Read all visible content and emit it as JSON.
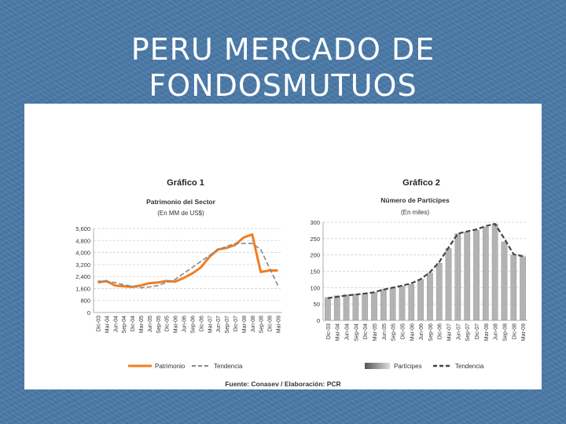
{
  "slide": {
    "title_line1": "PERU MERCADO DE",
    "title_line2": "FONDOSMUTUOS",
    "source": "Fuente: Conasev / Elaboración: PCR"
  },
  "colors": {
    "background": "#4a7aa8",
    "patrimonio": "#f07d22",
    "tendencia": "#888888",
    "bars": "#b5b5b5"
  },
  "chart_data": [
    {
      "type": "line",
      "title": "Gráfico 1",
      "subtitle": "Patrimonio del Sector",
      "unit_note": "(En MM de US$)",
      "x": [
        "Dic-03",
        "Mar-04",
        "Jun-04",
        "Sep-04",
        "Dic-04",
        "Mar-05",
        "Jun-05",
        "Sep-05",
        "Dic-05",
        "Mar-06",
        "Jun-06",
        "Sep-06",
        "Dic-06",
        "Mar-07",
        "Jun-07",
        "Sep-07",
        "Dic-07",
        "Mar-08",
        "Jun-08",
        "Sep-08",
        "Dic-08",
        "Mar-09"
      ],
      "y_ticks": [
        "5,600",
        "4,800",
        "4,000",
        "3,200",
        "2,400",
        "1,600",
        "800",
        "0"
      ],
      "ylim": [
        0,
        5600
      ],
      "grid": true,
      "legend_position": "bottom",
      "series": [
        {
          "name": "Patrimonio",
          "style": "solid",
          "values": [
            2000,
            2100,
            1800,
            1750,
            1700,
            1800,
            1950,
            2000,
            2100,
            2050,
            2300,
            2600,
            3000,
            3700,
            4200,
            4300,
            4500,
            5000,
            5200,
            2700,
            2800,
            2800
          ]
        },
        {
          "name": "Tendencia",
          "style": "dashed",
          "values": [
            2100,
            2050,
            2000,
            1850,
            1750,
            1650,
            1700,
            1800,
            2000,
            2200,
            2600,
            3000,
            3400,
            3800,
            4200,
            4400,
            4600,
            4600,
            4600,
            4200,
            3000,
            1800
          ]
        }
      ]
    },
    {
      "type": "bar",
      "title": "Gráfico 2",
      "subtitle": "Número de Partícipes",
      "unit_note": "(En miles)",
      "x": [
        "Dic-03",
        "Mar-04",
        "Jun-04",
        "Sep-04",
        "Dic-04",
        "Mar-05",
        "Jun-05",
        "Sep-05",
        "Dic-05",
        "Mar-06",
        "Jun-06",
        "Sep-06",
        "Dic-06",
        "Mar-07",
        "Jun-07",
        "Sep-07",
        "Dic-07",
        "Mar-08",
        "Jun-08",
        "Sep-08",
        "Dic-08",
        "Mar-09"
      ],
      "y_ticks": [
        "300",
        "250",
        "200",
        "150",
        "100",
        "50",
        "0"
      ],
      "ylim": [
        0,
        300
      ],
      "grid": true,
      "legend_position": "bottom",
      "series": [
        {
          "name": "Partícipes",
          "style": "bars",
          "values": [
            70,
            75,
            78,
            80,
            82,
            85,
            95,
            100,
            105,
            110,
            125,
            145,
            175,
            220,
            265,
            270,
            275,
            285,
            295,
            240,
            200,
            195
          ]
        },
        {
          "name": "Tendencia",
          "style": "dashed",
          "values": [
            68,
            72,
            76,
            79,
            82,
            86,
            94,
            100,
            106,
            113,
            126,
            147,
            178,
            222,
            265,
            272,
            278,
            288,
            295,
            250,
            202,
            196
          ]
        }
      ]
    }
  ]
}
